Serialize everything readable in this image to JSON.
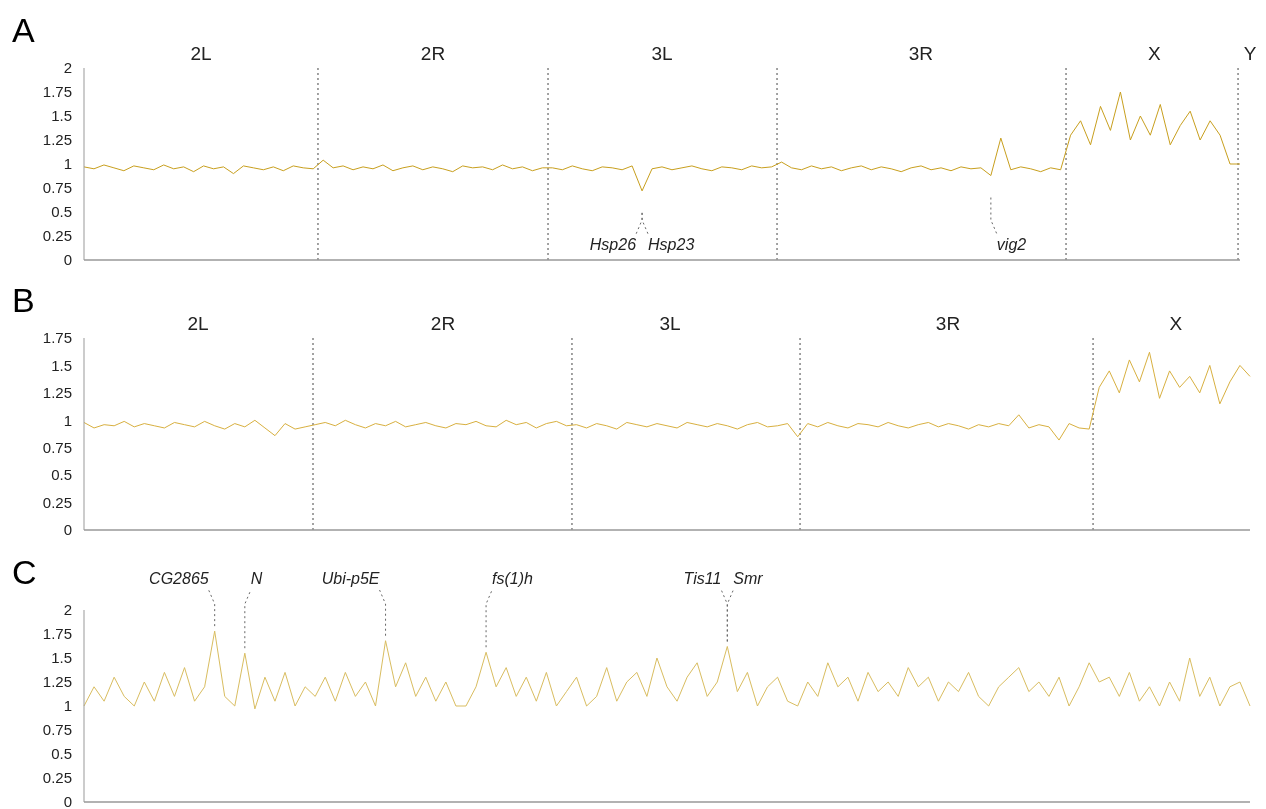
{
  "chart_data": [
    {
      "type": "line",
      "title": "A",
      "tick_labels": "y",
      "ylim": [
        0,
        2
      ],
      "yticks": [
        0,
        0.25,
        0.5,
        0.75,
        1,
        1.25,
        1.5,
        1.75,
        2
      ],
      "categories": [
        null,
        null,
        null,
        null,
        null,
        null,
        null,
        null,
        null,
        null,
        null,
        null,
        null,
        null,
        null,
        null,
        null,
        null,
        null,
        null,
        null,
        null,
        null,
        null,
        null,
        null,
        null,
        null,
        null,
        null,
        null,
        null,
        null,
        null,
        null,
        null,
        null,
        null,
        null,
        null,
        null,
        null,
        null,
        null,
        null,
        null,
        null,
        null,
        null,
        null,
        null,
        null,
        null,
        null,
        null,
        null,
        null,
        null,
        null,
        null,
        null,
        null,
        null,
        null,
        null,
        null,
        null,
        null,
        null,
        null,
        null,
        null,
        null,
        null,
        null,
        null,
        null,
        null,
        null,
        null,
        null,
        null,
        null,
        null,
        null,
        null,
        null,
        null,
        null,
        null,
        null,
        null,
        null,
        null,
        null,
        null,
        null,
        null,
        null,
        null,
        null,
        null,
        null,
        null,
        null,
        null,
        null,
        null,
        null,
        null,
        null,
        null,
        null,
        null,
        null,
        null,
        null
      ],
      "series": [
        {
          "color": "#c89f1e",
          "values": [
            0.97,
            0.95,
            0.99,
            0.96,
            0.93,
            0.98,
            0.96,
            0.94,
            0.99,
            0.95,
            0.97,
            0.92,
            0.98,
            0.95,
            0.97,
            0.9,
            0.98,
            0.96,
            0.94,
            0.97,
            0.93,
            0.98,
            0.96,
            0.95,
            1.04,
            0.96,
            0.98,
            0.94,
            0.97,
            0.95,
            0.99,
            0.93,
            0.96,
            0.98,
            0.94,
            0.97,
            0.95,
            0.92,
            0.98,
            0.96,
            0.97,
            0.94,
            0.99,
            0.95,
            0.97,
            0.93,
            0.96,
            0.96,
            0.94,
            0.98,
            0.95,
            0.93,
            0.97,
            0.96,
            0.94,
            0.98,
            0.72,
            0.95,
            0.97,
            0.94,
            0.96,
            0.98,
            0.95,
            0.93,
            0.97,
            0.96,
            0.94,
            0.98,
            0.96,
            0.97,
            1.02,
            0.96,
            0.94,
            0.98,
            0.95,
            0.97,
            0.93,
            0.96,
            0.98,
            0.94,
            0.97,
            0.95,
            0.92,
            0.96,
            0.98,
            0.94,
            0.96,
            0.93,
            0.97,
            0.95,
            0.96,
            0.88,
            1.27,
            0.94,
            0.97,
            0.95,
            0.92,
            0.96,
            0.94,
            1.3,
            1.45,
            1.2,
            1.6,
            1.35,
            1.75,
            1.25,
            1.5,
            1.3,
            1.62,
            1.2,
            1.4,
            1.55,
            1.25,
            1.45,
            1.3,
            1.0,
            1.0
          ]
        }
      ],
      "annotations": [
        "2L",
        "2R",
        "3L",
        "3R",
        "X",
        "Y",
        "Hsp26",
        "Hsp23",
        "vig2"
      ]
    },
    {
      "type": "line",
      "title": "B",
      "tick_labels": "y",
      "ylim": [
        0,
        1.75
      ],
      "yticks": [
        0,
        0.25,
        0.5,
        0.75,
        1,
        1.25,
        1.5,
        1.75
      ],
      "categories": [
        null,
        null,
        null,
        null,
        null,
        null,
        null,
        null,
        null,
        null,
        null,
        null,
        null,
        null,
        null,
        null,
        null,
        null,
        null,
        null,
        null,
        null,
        null,
        null,
        null,
        null,
        null,
        null,
        null,
        null,
        null,
        null,
        null,
        null,
        null,
        null,
        null,
        null,
        null,
        null,
        null,
        null,
        null,
        null,
        null,
        null,
        null,
        null,
        null,
        null,
        null,
        null,
        null,
        null,
        null,
        null,
        null,
        null,
        null,
        null,
        null,
        null,
        null,
        null,
        null,
        null,
        null,
        null,
        null,
        null,
        null,
        null,
        null,
        null,
        null,
        null,
        null,
        null,
        null,
        null,
        null,
        null,
        null,
        null,
        null,
        null,
        null,
        null,
        null,
        null,
        null,
        null,
        null,
        null,
        null,
        null,
        null,
        null,
        null,
        null,
        null,
        null,
        null,
        null,
        null,
        null,
        null,
        null,
        null,
        null,
        null,
        null,
        null,
        null,
        null,
        null,
        null
      ],
      "series": [
        {
          "color": "#d8b040",
          "values": [
            0.98,
            0.93,
            0.96,
            0.95,
            0.99,
            0.94,
            0.97,
            0.95,
            0.93,
            0.98,
            0.96,
            0.94,
            0.99,
            0.95,
            0.92,
            0.97,
            0.94,
            1.0,
            0.93,
            0.86,
            0.97,
            0.92,
            0.94,
            0.96,
            0.98,
            0.95,
            1.0,
            0.96,
            0.93,
            0.97,
            0.95,
            0.99,
            0.94,
            0.96,
            0.98,
            0.95,
            0.93,
            0.97,
            0.96,
            0.99,
            0.95,
            0.94,
            1.0,
            0.96,
            0.98,
            0.93,
            0.97,
            0.99,
            0.95,
            0.96,
            0.93,
            0.97,
            0.95,
            0.92,
            0.98,
            0.96,
            0.94,
            0.97,
            0.95,
            0.93,
            0.98,
            0.96,
            0.94,
            0.97,
            0.95,
            0.92,
            0.96,
            0.98,
            0.94,
            0.95,
            0.97,
            0.85,
            0.97,
            0.94,
            0.98,
            0.95,
            0.93,
            0.97,
            0.96,
            0.94,
            0.98,
            0.95,
            0.93,
            0.96,
            0.98,
            0.94,
            0.97,
            0.95,
            0.92,
            0.96,
            0.94,
            0.97,
            0.95,
            1.05,
            0.93,
            0.96,
            0.94,
            0.82,
            0.97,
            0.93,
            0.92,
            1.3,
            1.45,
            1.25,
            1.55,
            1.35,
            1.62,
            1.2,
            1.45,
            1.3,
            1.4,
            1.25,
            1.5,
            1.15,
            1.35,
            1.5,
            1.4
          ]
        }
      ],
      "annotations": [
        "2L",
        "2R",
        "3L",
        "3R",
        "X"
      ]
    },
    {
      "type": "line",
      "title": "C",
      "tick_labels": "y",
      "ylim": [
        0,
        2
      ],
      "yticks": [
        0,
        0.25,
        0.5,
        0.75,
        1,
        1.25,
        1.5,
        1.75,
        2
      ],
      "categories": [
        null,
        null,
        null,
        null,
        null,
        null,
        null,
        null,
        null,
        null,
        null,
        null,
        null,
        null,
        null,
        null,
        null,
        null,
        null,
        null,
        null,
        null,
        null,
        null,
        null,
        null,
        null,
        null,
        null,
        null,
        null,
        null,
        null,
        null,
        null,
        null,
        null,
        null,
        null,
        null,
        null,
        null,
        null,
        null,
        null,
        null,
        null,
        null,
        null,
        null,
        null,
        null,
        null,
        null,
        null,
        null,
        null,
        null,
        null,
        null,
        null,
        null,
        null,
        null,
        null,
        null,
        null,
        null,
        null,
        null,
        null,
        null,
        null,
        null,
        null,
        null,
        null,
        null,
        null,
        null,
        null,
        null,
        null,
        null,
        null,
        null,
        null,
        null,
        null,
        null,
        null,
        null,
        null,
        null,
        null,
        null,
        null,
        null,
        null,
        null,
        null,
        null,
        null,
        null,
        null,
        null,
        null,
        null,
        null,
        null,
        null,
        null,
        null,
        null,
        null,
        null,
        null
      ],
      "series": [
        {
          "color": "#d9bd60",
          "values": [
            1.0,
            1.2,
            1.05,
            1.3,
            1.1,
            1.0,
            1.25,
            1.05,
            1.35,
            1.1,
            1.4,
            1.05,
            1.2,
            1.78,
            1.1,
            1.0,
            1.55,
            0.97,
            1.3,
            1.05,
            1.35,
            1.0,
            1.2,
            1.1,
            1.3,
            1.05,
            1.35,
            1.1,
            1.25,
            1.0,
            1.68,
            1.2,
            1.45,
            1.1,
            1.3,
            1.05,
            1.25,
            1.0,
            1.0,
            1.2,
            1.56,
            1.2,
            1.4,
            1.1,
            1.3,
            1.05,
            1.35,
            1.0,
            1.15,
            1.3,
            1.0,
            1.1,
            1.4,
            1.05,
            1.25,
            1.35,
            1.1,
            1.5,
            1.2,
            1.05,
            1.3,
            1.45,
            1.1,
            1.25,
            1.62,
            1.15,
            1.35,
            1.0,
            1.2,
            1.3,
            1.05,
            1.0,
            1.25,
            1.1,
            1.45,
            1.2,
            1.3,
            1.05,
            1.35,
            1.15,
            1.25,
            1.1,
            1.4,
            1.2,
            1.3,
            1.05,
            1.25,
            1.15,
            1.35,
            1.1,
            1.0,
            1.2,
            1.3,
            1.4,
            1.15,
            1.25,
            1.1,
            1.3,
            1.0,
            1.2,
            1.45,
            1.25,
            1.3,
            1.1,
            1.35,
            1.05,
            1.2,
            1.0,
            1.25,
            1.05,
            1.5,
            1.1,
            1.3,
            1.0,
            1.2,
            1.25,
            1.0
          ]
        }
      ],
      "annotations": [
        "CG2865",
        "N",
        "Ubi-p5E",
        "fs(1)h",
        "Tis11",
        "Smr"
      ]
    }
  ]
}
